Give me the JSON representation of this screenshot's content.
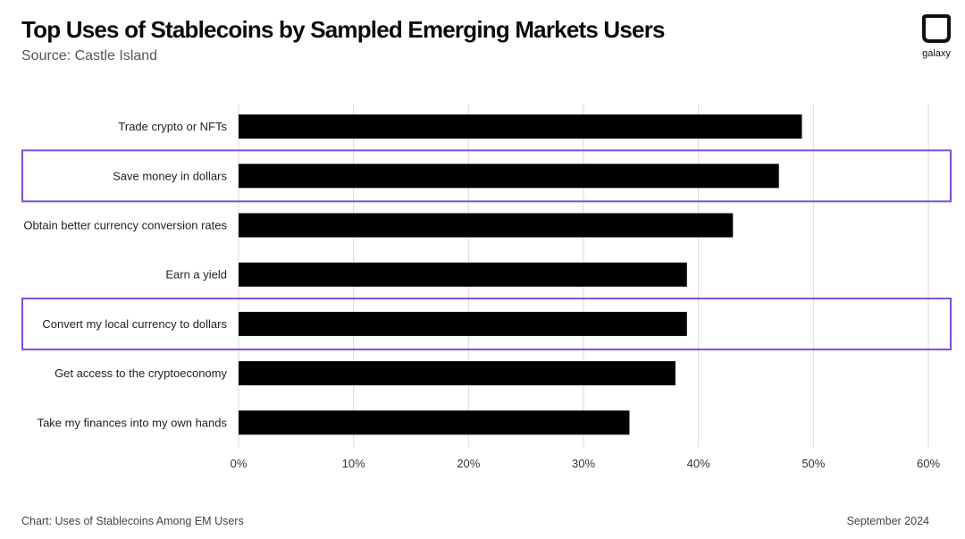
{
  "header": {
    "title": "Top Uses of Stablecoins by Sampled Emerging Markets Users",
    "subtitle": "Source: Castle Island"
  },
  "logo": {
    "icon": "galaxy-logo-icon",
    "text": "galaxy"
  },
  "footer": {
    "left": "Chart: Uses of Stablecoins Among EM Users",
    "right": "September 2024"
  },
  "colors": {
    "bar": "#000000",
    "highlight": "#7b4fd6",
    "grid": "#d9d9d9"
  },
  "chart_data": {
    "type": "bar",
    "orientation": "horizontal",
    "categories": [
      "Trade crypto or NFTs",
      "Save money in dollars",
      "Obtain better currency conversion rates",
      "Earn a yield",
      "Convert my local currency to dollars",
      "Get access to the cryptoeconomy",
      "Take my finances into my own hands"
    ],
    "values": [
      49,
      47,
      43,
      39,
      39,
      38,
      34
    ],
    "highlighted": [
      "Save money in dollars",
      "Convert my local currency to dollars"
    ],
    "xlim": [
      0,
      60
    ],
    "xticks": [
      0,
      10,
      20,
      30,
      40,
      50,
      60
    ],
    "xtick_labels": [
      "0%",
      "10%",
      "20%",
      "30%",
      "40%",
      "50%",
      "60%"
    ],
    "grid": true,
    "legend": "none"
  }
}
